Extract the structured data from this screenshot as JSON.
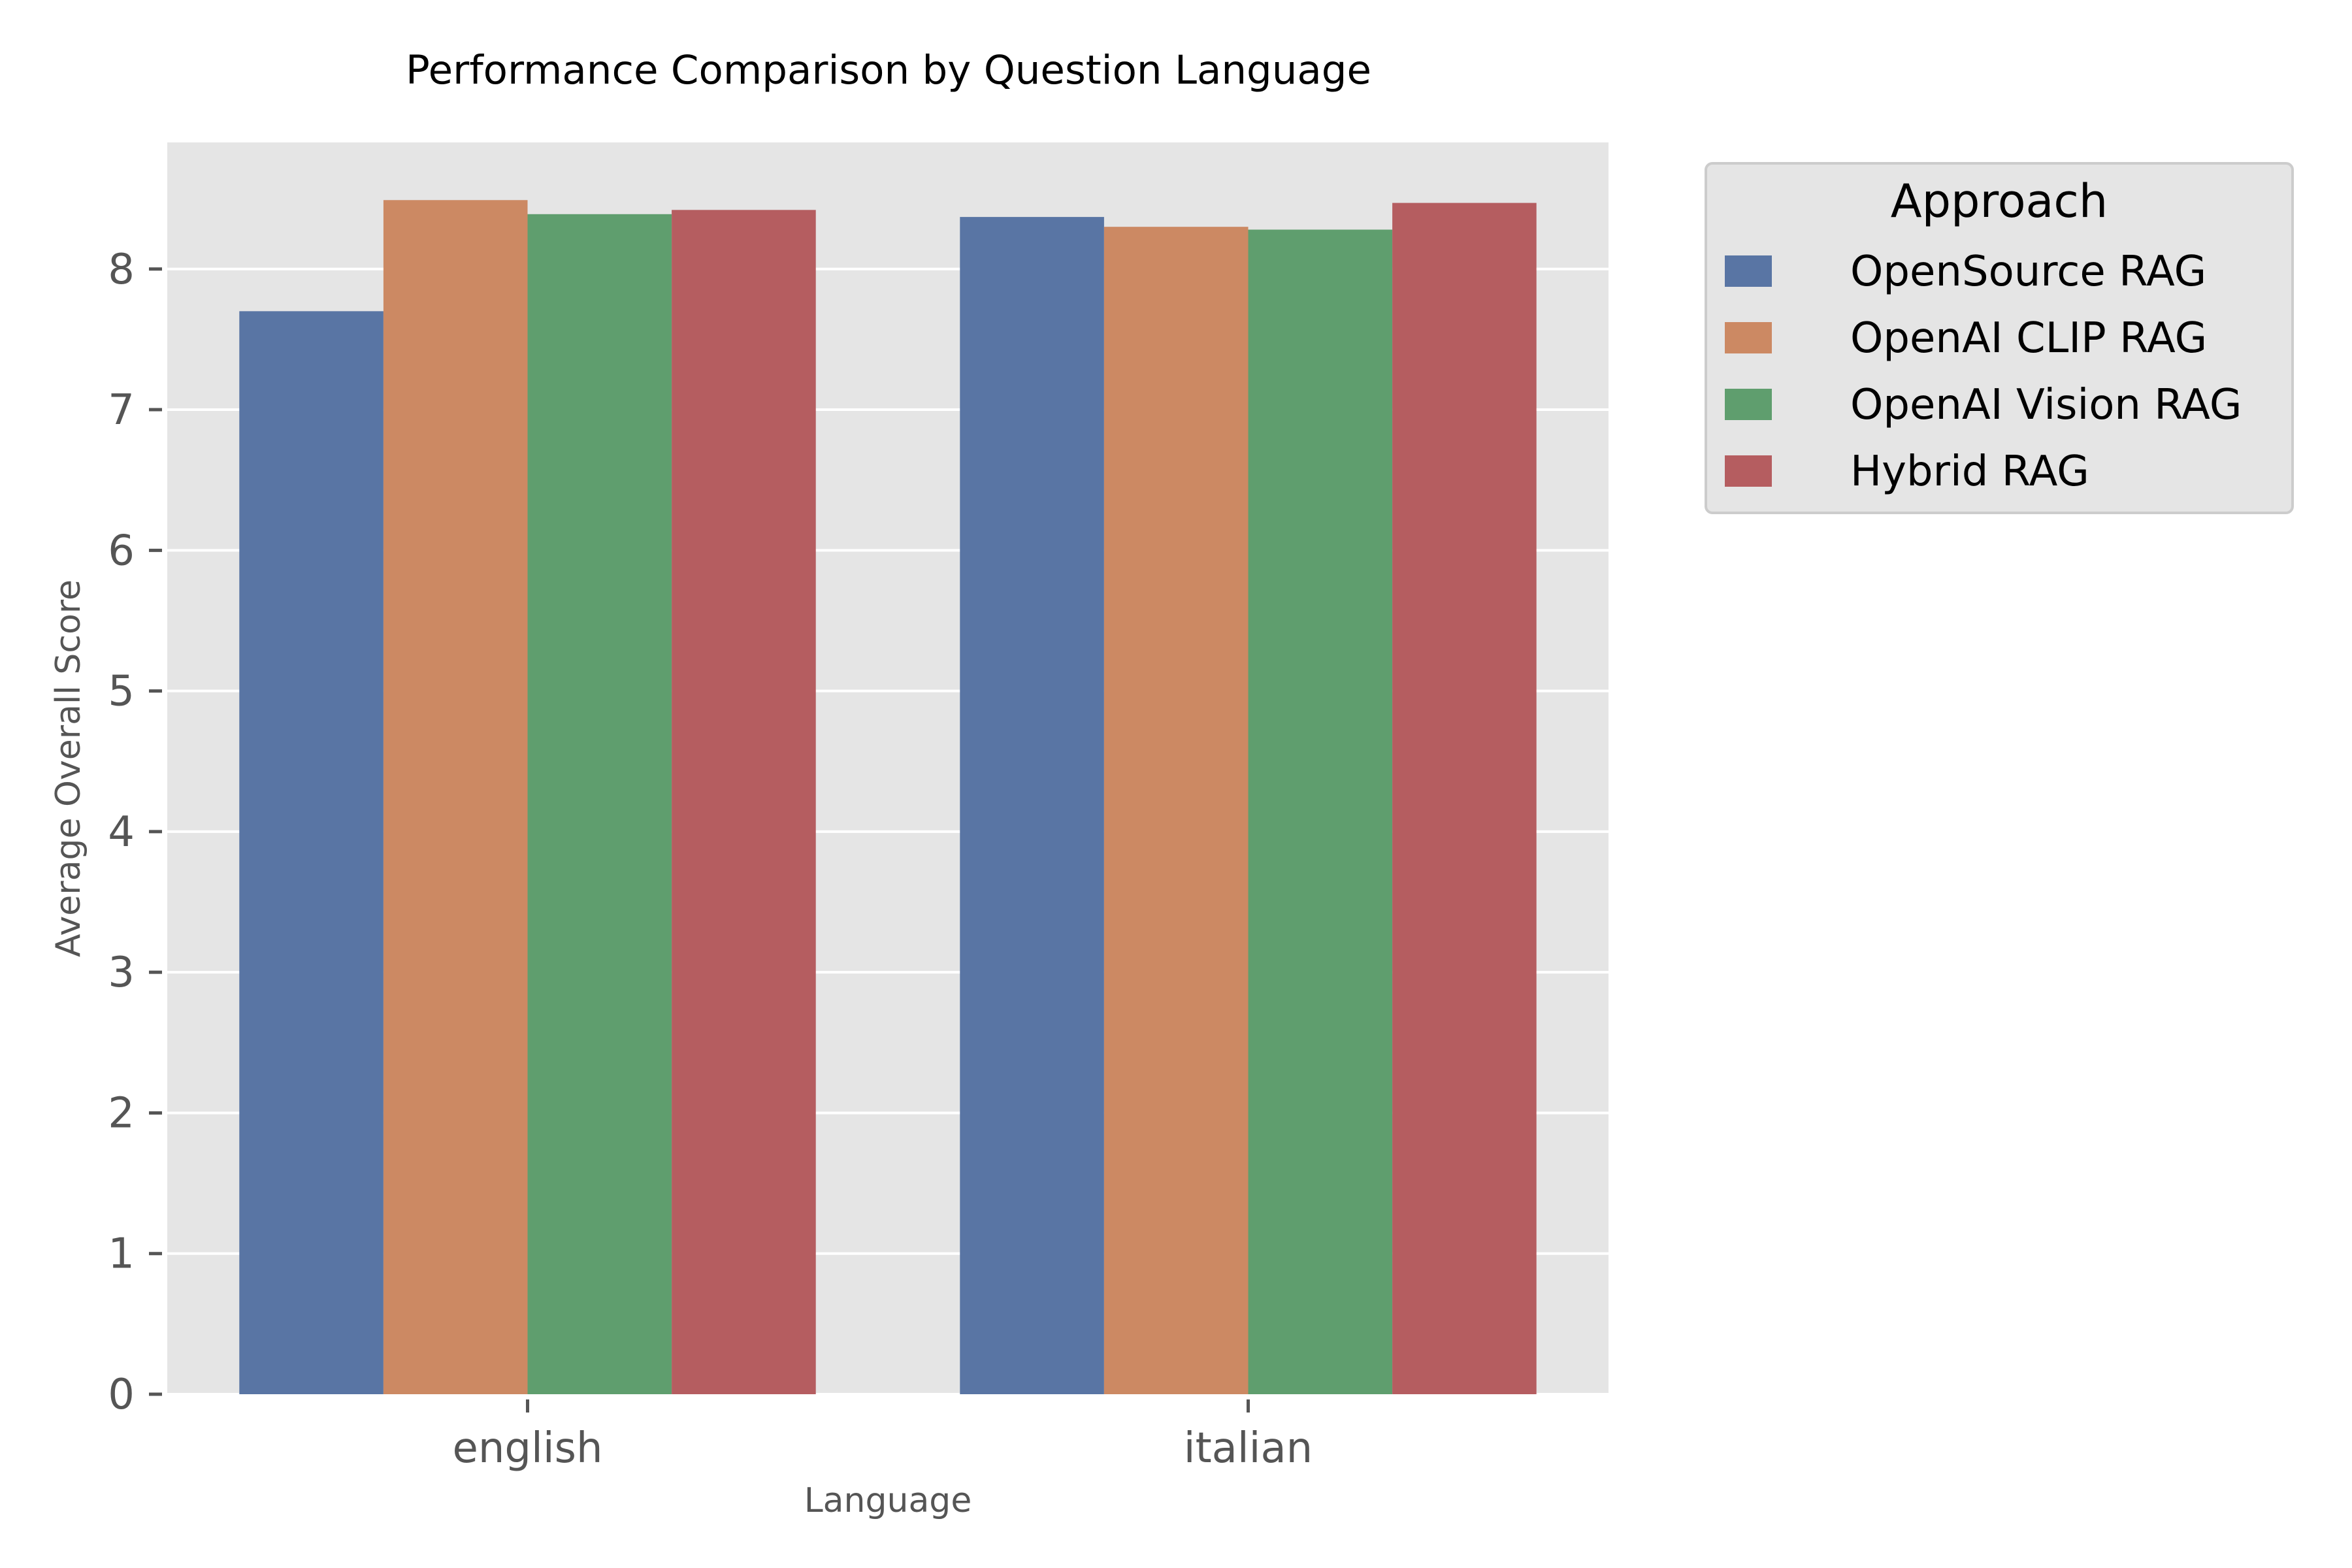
{
  "chart_data": {
    "type": "bar",
    "title": "Performance Comparison by Question Language",
    "xlabel": "Language",
    "ylabel": "Average Overall Score",
    "categories": [
      "english",
      "italian"
    ],
    "series": [
      {
        "name": "OpenSource RAG",
        "color": "#5975a4",
        "values": [
          7.7,
          8.37
        ]
      },
      {
        "name": "OpenAI CLIP RAG",
        "color": "#cc8963",
        "values": [
          8.49,
          8.3
        ]
      },
      {
        "name": "OpenAI Vision RAG",
        "color": "#5f9e6e",
        "values": [
          8.39,
          8.28
        ]
      },
      {
        "name": "Hybrid RAG",
        "color": "#b55d60",
        "values": [
          8.42,
          8.47
        ]
      }
    ],
    "ylim": [
      0,
      8.9
    ],
    "yticks": [
      0,
      1,
      2,
      3,
      4,
      5,
      6,
      7,
      8
    ],
    "grid": true,
    "legend": {
      "title": "Approach",
      "placement": "outside-top-right"
    }
  }
}
